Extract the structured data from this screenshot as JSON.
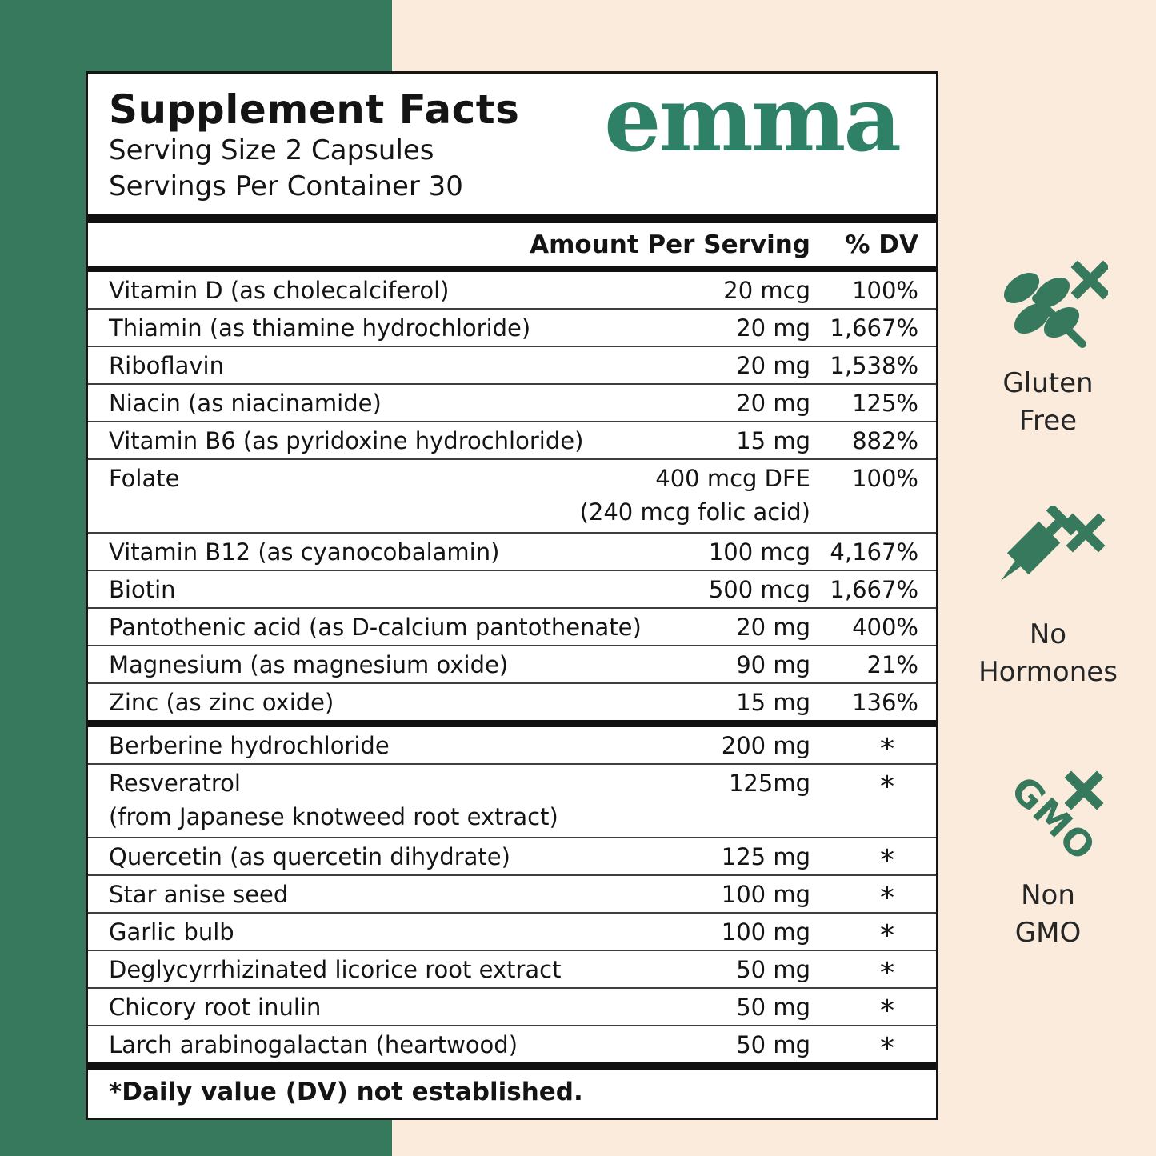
{
  "colors": {
    "band_green": "#37795C",
    "background_cream": "#FAEBDD",
    "logo_green": "#2E8066",
    "icon_green": "#37795C",
    "panel_border": "#161616"
  },
  "panel": {
    "title": "Supplement Facts",
    "serving_size": "Serving Size 2 Capsules",
    "servings_per_container": "Servings Per Container 30",
    "brand": "emma",
    "columns": {
      "amount": "Amount Per Serving",
      "dv": "% DV"
    },
    "vitamin_rows": [
      {
        "name": "Vitamin D (as cholecalciferol)",
        "amount": "20 mcg",
        "dv": "100%"
      },
      {
        "name": "Thiamin (as thiamine hydrochloride)",
        "amount": "20 mg",
        "dv": "1,667%"
      },
      {
        "name": "Riboflavin",
        "amount": "20 mg",
        "dv": "1,538%"
      },
      {
        "name": "Niacin (as niacinamide)",
        "amount": "20 mg",
        "dv": "125%"
      },
      {
        "name": "Vitamin B6 (as pyridoxine hydrochloride)",
        "amount": "15 mg",
        "dv": "882%"
      },
      {
        "name": "Folate",
        "amount": "400 mcg DFE",
        "dv": "100%",
        "line2": "(240 mcg folic acid)",
        "line2_align": "right"
      },
      {
        "name": "Vitamin B12 (as cyanocobalamin)",
        "amount": "100 mcg",
        "dv": "4,167%"
      },
      {
        "name": "Biotin",
        "amount": "500 mcg",
        "dv": "1,667%"
      },
      {
        "name": "Pantothenic acid (as D-calcium pantothenate)",
        "amount": "20 mg",
        "dv": "400%"
      },
      {
        "name": "Magnesium (as magnesium oxide)",
        "amount": "90 mg",
        "dv": "21%"
      },
      {
        "name": "Zinc (as zinc oxide)",
        "amount": "15 mg",
        "dv": "136%"
      }
    ],
    "herbal_rows": [
      {
        "name": "Berberine hydrochloride",
        "amount": "200 mg",
        "dv": "*"
      },
      {
        "name": "Resveratrol",
        "amount": "125mg",
        "dv": "*",
        "line2": "(from Japanese knotweed root extract)",
        "line2_align": "left"
      },
      {
        "name": "Quercetin (as quercetin dihydrate)",
        "amount": "125 mg",
        "dv": "*"
      },
      {
        "name": "Star anise seed",
        "amount": "100 mg",
        "dv": "*"
      },
      {
        "name": "Garlic bulb",
        "amount": "100 mg",
        "dv": "*"
      },
      {
        "name": "Deglycyrrhizinated licorice root extract",
        "amount": "50 mg",
        "dv": "*"
      },
      {
        "name": "Chicory root inulin",
        "amount": "50 mg",
        "dv": "*"
      },
      {
        "name": "Larch arabinogalactan (heartwood)",
        "amount": "50 mg",
        "dv": "*"
      }
    ],
    "footnote": "*Daily value (DV) not established."
  },
  "badges": [
    {
      "icon": "wheat-crossed-icon",
      "lines": [
        "Gluten",
        "Free"
      ]
    },
    {
      "icon": "syringe-crossed-icon",
      "lines": [
        "No",
        "Hormones"
      ]
    },
    {
      "icon": "gmo-crossed-icon",
      "icon_label": "GMO",
      "lines": [
        "Non",
        "GMO"
      ]
    }
  ]
}
